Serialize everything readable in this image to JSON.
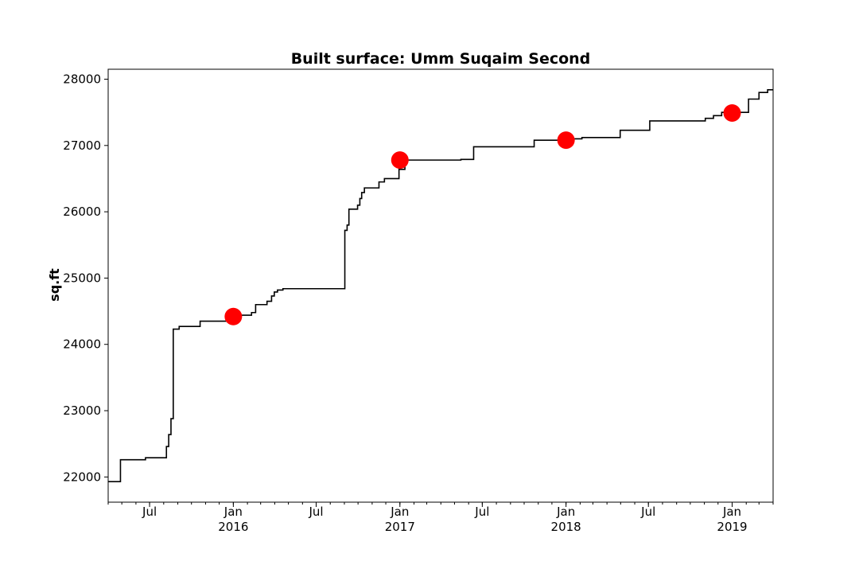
{
  "chart_data": {
    "type": "line",
    "title": "Built surface: Umm Suqaim Second",
    "xlabel": "",
    "ylabel": "sq.ft",
    "xlim": [
      "2015-04-01",
      "2019-04-01"
    ],
    "ylim": [
      21620,
      28150
    ],
    "y_ticks": [
      22000,
      23000,
      24000,
      25000,
      26000,
      27000,
      28000
    ],
    "x_major_ticks": [
      {
        "date": "2015-07-01",
        "label": "Jul",
        "sublabel": ""
      },
      {
        "date": "2016-01-01",
        "label": "Jan",
        "sublabel": "2016"
      },
      {
        "date": "2016-07-01",
        "label": "Jul",
        "sublabel": ""
      },
      {
        "date": "2017-01-01",
        "label": "Jan",
        "sublabel": "2017"
      },
      {
        "date": "2017-07-01",
        "label": "Jul",
        "sublabel": ""
      },
      {
        "date": "2018-01-01",
        "label": "Jan",
        "sublabel": "2018"
      },
      {
        "date": "2018-07-01",
        "label": "Jul",
        "sublabel": ""
      },
      {
        "date": "2019-01-01",
        "label": "Jan",
        "sublabel": "2019"
      }
    ],
    "grid": false,
    "series": [
      {
        "style": "step",
        "color": "#000000",
        "points": [
          [
            "2015-04-01",
            21930
          ],
          [
            "2015-04-28",
            22260
          ],
          [
            "2015-06-22",
            22290
          ],
          [
            "2015-08-07",
            22460
          ],
          [
            "2015-08-12",
            22640
          ],
          [
            "2015-08-17",
            22880
          ],
          [
            "2015-08-22",
            24230
          ],
          [
            "2015-09-04",
            24270
          ],
          [
            "2015-10-20",
            24350
          ],
          [
            "2016-01-12",
            24440
          ],
          [
            "2016-02-10",
            24480
          ],
          [
            "2016-02-19",
            24600
          ],
          [
            "2016-03-15",
            24650
          ],
          [
            "2016-03-25",
            24730
          ],
          [
            "2016-03-31",
            24790
          ],
          [
            "2016-04-07",
            24820
          ],
          [
            "2016-04-19",
            24840
          ],
          [
            "2016-09-02",
            25720
          ],
          [
            "2016-09-07",
            25800
          ],
          [
            "2016-09-11",
            26040
          ],
          [
            "2016-09-30",
            26100
          ],
          [
            "2016-10-05",
            26200
          ],
          [
            "2016-10-09",
            26290
          ],
          [
            "2016-10-15",
            26360
          ],
          [
            "2016-11-16",
            26450
          ],
          [
            "2016-11-28",
            26500
          ],
          [
            "2016-12-30",
            26640
          ],
          [
            "2017-01-12",
            26780
          ],
          [
            "2017-05-15",
            26790
          ],
          [
            "2017-06-12",
            26980
          ],
          [
            "2017-10-23",
            27080
          ],
          [
            "2018-01-17",
            27100
          ],
          [
            "2018-02-05",
            27120
          ],
          [
            "2018-04-30",
            27230
          ],
          [
            "2018-07-04",
            27370
          ],
          [
            "2018-11-03",
            27410
          ],
          [
            "2018-11-21",
            27450
          ],
          [
            "2018-12-09",
            27500
          ],
          [
            "2019-01-26",
            27500
          ],
          [
            "2019-02-06",
            27700
          ],
          [
            "2019-03-01",
            27800
          ],
          [
            "2019-03-20",
            27840
          ],
          [
            "2019-04-01",
            27840
          ]
        ]
      }
    ],
    "markers": {
      "color": "#ff0000",
      "points": [
        [
          "2016-01-01",
          24420
        ],
        [
          "2017-01-01",
          26780
        ],
        [
          "2018-01-01",
          27080
        ],
        [
          "2019-01-01",
          27490
        ]
      ]
    }
  }
}
